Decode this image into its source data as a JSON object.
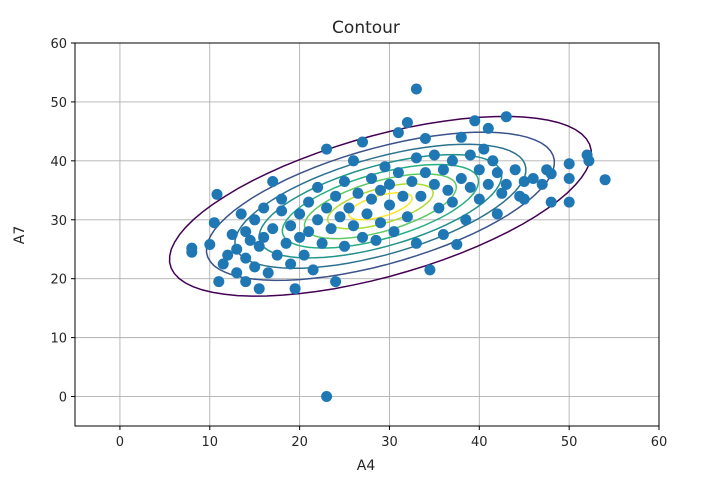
{
  "chart_data": {
    "type": "scatter",
    "title": "Contour",
    "xlabel": "A4",
    "ylabel": "A7",
    "xlim": [
      -5,
      60
    ],
    "ylim": [
      -5,
      60
    ],
    "xticks": [
      0,
      10,
      20,
      30,
      40,
      50,
      60
    ],
    "yticks": [
      0,
      10,
      20,
      30,
      40,
      50,
      60
    ],
    "grid": true,
    "point_color": "#1f77b4",
    "points": [
      [
        23,
        0
      ],
      [
        33,
        52.2
      ],
      [
        8,
        25.2
      ],
      [
        8,
        24.5
      ],
      [
        10,
        25.8
      ],
      [
        10.5,
        29.5
      ],
      [
        10.8,
        34.3
      ],
      [
        11,
        19.5
      ],
      [
        11.5,
        22.5
      ],
      [
        12,
        24
      ],
      [
        12.5,
        27.5
      ],
      [
        13,
        21
      ],
      [
        13,
        25
      ],
      [
        13.5,
        31
      ],
      [
        14,
        19.5
      ],
      [
        14,
        23.5
      ],
      [
        14,
        28
      ],
      [
        14.5,
        26.5
      ],
      [
        15,
        30
      ],
      [
        15,
        22
      ],
      [
        15.5,
        18.3
      ],
      [
        15.5,
        25.5
      ],
      [
        16,
        32
      ],
      [
        16,
        27
      ],
      [
        16.5,
        21
      ],
      [
        17,
        28.5
      ],
      [
        17,
        36.5
      ],
      [
        17.5,
        24
      ],
      [
        18,
        31.5
      ],
      [
        18,
        33.5
      ],
      [
        18.5,
        26
      ],
      [
        19,
        29
      ],
      [
        19,
        22.5
      ],
      [
        19.5,
        18.3
      ],
      [
        20,
        27
      ],
      [
        20,
        31
      ],
      [
        20.5,
        24
      ],
      [
        21,
        33
      ],
      [
        21,
        28
      ],
      [
        21.5,
        21.5
      ],
      [
        22,
        30
      ],
      [
        22,
        35.5
      ],
      [
        22.5,
        26
      ],
      [
        23,
        32
      ],
      [
        23,
        42
      ],
      [
        23.5,
        28.5
      ],
      [
        24,
        34
      ],
      [
        24,
        19.5
      ],
      [
        24.5,
        30.5
      ],
      [
        25,
        36.5
      ],
      [
        25,
        25.5
      ],
      [
        25.5,
        32
      ],
      [
        26,
        29
      ],
      [
        26,
        40
      ],
      [
        26.5,
        34.5
      ],
      [
        27,
        43.2
      ],
      [
        27,
        27
      ],
      [
        27.5,
        31
      ],
      [
        28,
        37
      ],
      [
        28,
        33.5
      ],
      [
        28.5,
        26.5
      ],
      [
        29,
        35
      ],
      [
        29,
        29.5
      ],
      [
        29.5,
        39
      ],
      [
        30,
        32.5
      ],
      [
        30,
        36
      ],
      [
        30.5,
        28
      ],
      [
        31,
        44.8
      ],
      [
        31,
        38
      ],
      [
        31.5,
        34
      ],
      [
        32,
        46.5
      ],
      [
        32,
        30.5
      ],
      [
        32.5,
        36.5
      ],
      [
        33,
        40.5
      ],
      [
        33,
        26
      ],
      [
        33.5,
        34
      ],
      [
        34,
        38
      ],
      [
        34,
        43.8
      ],
      [
        34.5,
        21.5
      ],
      [
        35,
        36
      ],
      [
        35,
        41
      ],
      [
        35.5,
        32
      ],
      [
        36,
        38.5
      ],
      [
        36,
        27.5
      ],
      [
        36.5,
        35
      ],
      [
        37,
        40
      ],
      [
        37,
        33
      ],
      [
        37.5,
        25.8
      ],
      [
        38,
        44
      ],
      [
        38,
        37
      ],
      [
        38.5,
        30
      ],
      [
        39,
        41
      ],
      [
        39,
        35.5
      ],
      [
        39.5,
        46.8
      ],
      [
        40,
        38.5
      ],
      [
        40,
        33.5
      ],
      [
        40.5,
        42
      ],
      [
        41,
        45.5
      ],
      [
        41,
        36
      ],
      [
        41.5,
        40
      ],
      [
        42,
        38
      ],
      [
        42,
        31
      ],
      [
        42.5,
        34.5
      ],
      [
        43,
        47.5
      ],
      [
        43,
        36
      ],
      [
        44,
        38.5
      ],
      [
        44.5,
        34
      ],
      [
        45,
        36.5
      ],
      [
        45,
        33.5
      ],
      [
        46,
        37
      ],
      [
        47,
        36
      ],
      [
        47.5,
        38.5
      ],
      [
        48,
        33
      ],
      [
        48,
        37.8
      ],
      [
        50,
        33
      ],
      [
        50,
        39.5
      ],
      [
        50,
        37
      ],
      [
        52,
        41
      ],
      [
        52.2,
        40
      ],
      [
        54,
        36.8
      ]
    ]
  }
}
